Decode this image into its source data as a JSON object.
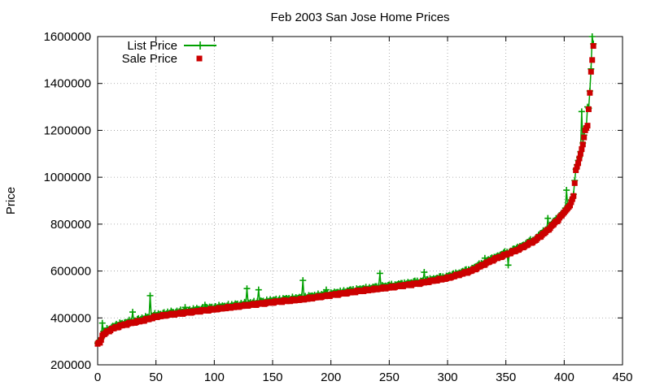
{
  "chart_data": {
    "type": "scatter",
    "title": "Feb 2003 San Jose Home Prices",
    "xlabel": "",
    "ylabel": "Price",
    "xlim": [
      0,
      450
    ],
    "ylim": [
      200000,
      1600000
    ],
    "x_ticks": [
      0,
      50,
      100,
      150,
      200,
      250,
      300,
      350,
      400,
      450
    ],
    "y_ticks": [
      200000,
      400000,
      600000,
      800000,
      1000000,
      1200000,
      1400000,
      1600000
    ],
    "grid": true,
    "legend_position": "top-left",
    "series": [
      {
        "name": "List Price",
        "style": "linespoints",
        "marker": "plus",
        "color": "#00a000",
        "note": "list price per home, sorted by sale price; mostly tracks the sale price with occasional higher spikes",
        "spikes": [
          {
            "x": 4,
            "y": 378000
          },
          {
            "x": 30,
            "y": 425000
          },
          {
            "x": 45,
            "y": 495000
          },
          {
            "x": 75,
            "y": 445000
          },
          {
            "x": 92,
            "y": 455000
          },
          {
            "x": 128,
            "y": 525000
          },
          {
            "x": 138,
            "y": 520000
          },
          {
            "x": 176,
            "y": 560000
          },
          {
            "x": 196,
            "y": 520000
          },
          {
            "x": 242,
            "y": 590000
          },
          {
            "x": 280,
            "y": 595000
          },
          {
            "x": 332,
            "y": 655000
          },
          {
            "x": 352,
            "y": 625000
          },
          {
            "x": 386,
            "y": 825000
          },
          {
            "x": 402,
            "y": 945000
          },
          {
            "x": 415,
            "y": 1280000
          },
          {
            "x": 420,
            "y": 1300000
          },
          {
            "x": 424,
            "y": 1600000
          }
        ]
      },
      {
        "name": "Sale Price",
        "style": "points",
        "marker": "square",
        "color": "#cc0000",
        "note": "sale prices sorted ascending, index 0-425",
        "points": [
          [
            0,
            288000
          ],
          [
            2,
            295000
          ],
          [
            4,
            325000
          ],
          [
            6,
            332000
          ],
          [
            8,
            340000
          ],
          [
            12,
            352000
          ],
          [
            16,
            360000
          ],
          [
            20,
            367000
          ],
          [
            30,
            380000
          ],
          [
            40,
            390000
          ],
          [
            50,
            405000
          ],
          [
            60,
            413000
          ],
          [
            75,
            422000
          ],
          [
            100,
            437000
          ],
          [
            125,
            452000
          ],
          [
            150,
            467000
          ],
          [
            175,
            479000
          ],
          [
            200,
            497000
          ],
          [
            225,
            515000
          ],
          [
            250,
            530000
          ],
          [
            275,
            547000
          ],
          [
            300,
            570000
          ],
          [
            320,
            600000
          ],
          [
            340,
            650000
          ],
          [
            360,
            690000
          ],
          [
            375,
            730000
          ],
          [
            385,
            770000
          ],
          [
            395,
            820000
          ],
          [
            400,
            850000
          ],
          [
            405,
            880000
          ],
          [
            408,
            920000
          ],
          [
            410,
            1030000
          ],
          [
            412,
            1060000
          ],
          [
            414,
            1100000
          ],
          [
            416,
            1140000
          ],
          [
            418,
            1200000
          ],
          [
            420,
            1220000
          ],
          [
            422,
            1360000
          ],
          [
            423,
            1450000
          ],
          [
            424,
            1500000
          ],
          [
            425,
            1560000
          ]
        ]
      }
    ]
  }
}
